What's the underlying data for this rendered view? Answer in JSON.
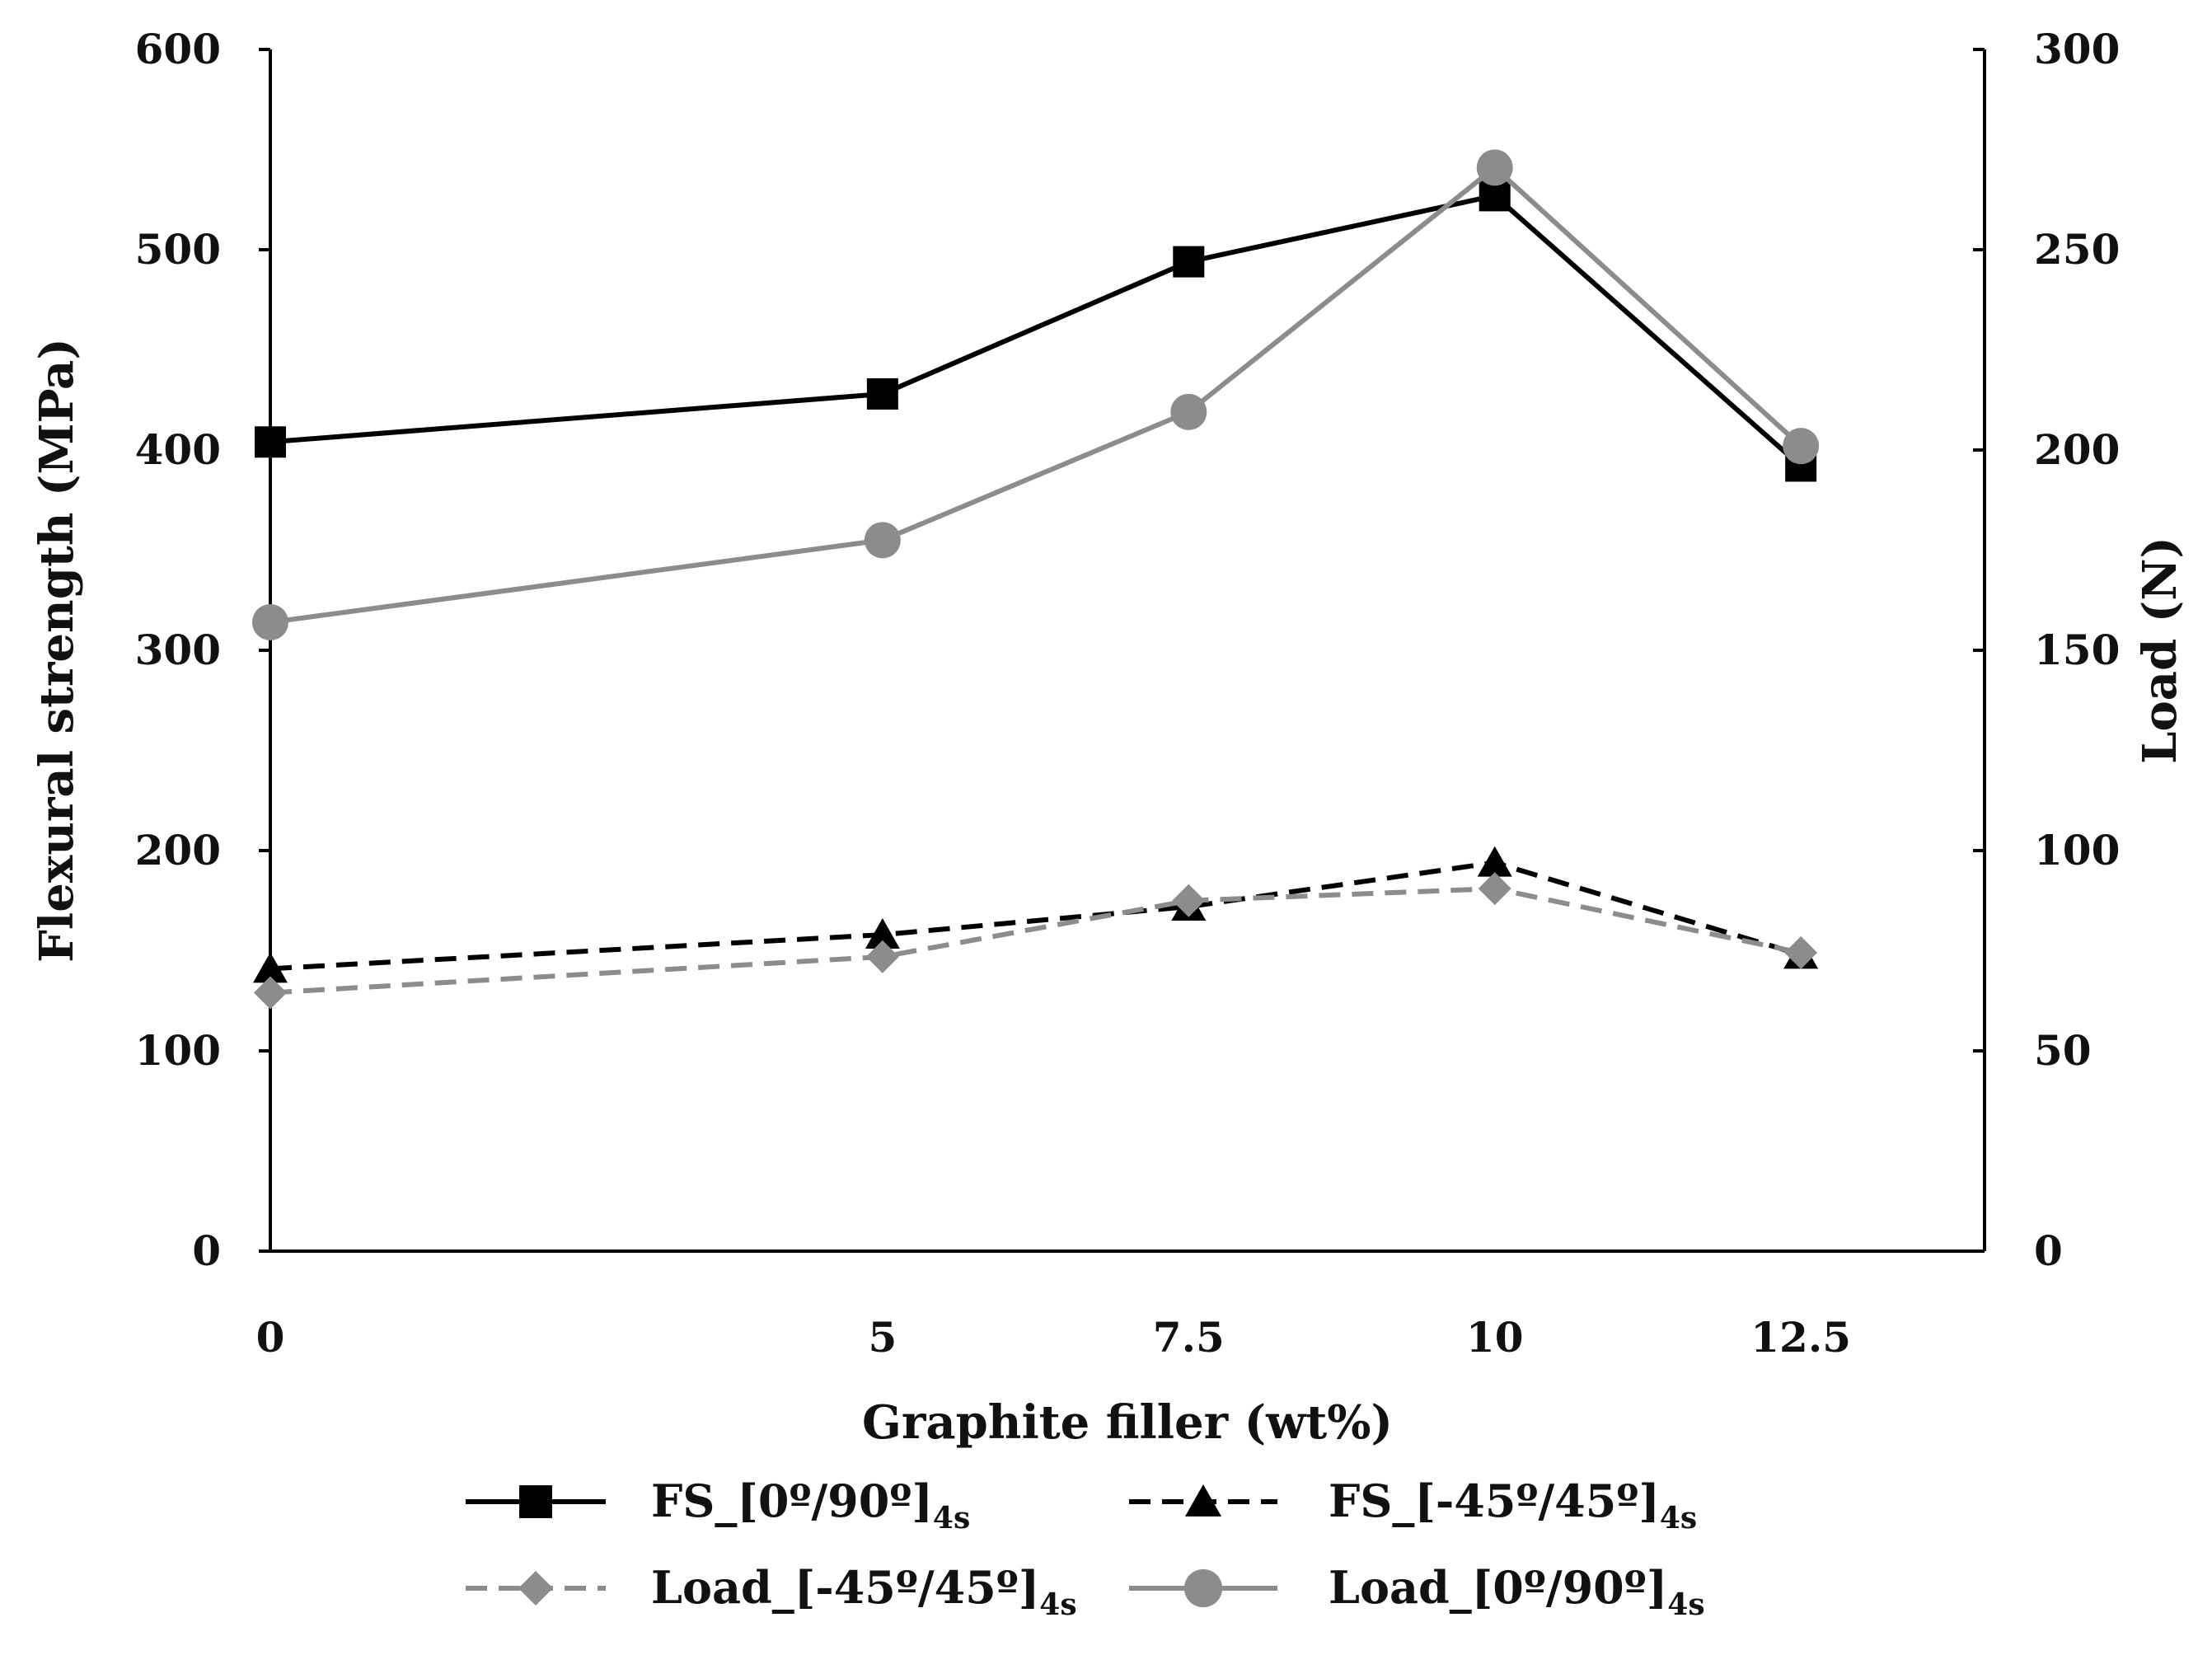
{
  "chart_data": {
    "type": "line",
    "title": "",
    "xlabel": "Graphite filler (wt%)",
    "ylabel_left": "Flexural strength (MPa)",
    "ylabel_right": "Load (N)",
    "x": [
      0,
      5,
      7.5,
      10,
      12.5
    ],
    "x_tick_labels": [
      "0",
      "5",
      "7.5",
      "10",
      "12.5"
    ],
    "xlim": [
      0,
      14
    ],
    "ylim_left": [
      0,
      600
    ],
    "ylim_right": [
      0,
      300
    ],
    "left_ticks": [
      0,
      100,
      200,
      300,
      400,
      500,
      600
    ],
    "right_ticks": [
      0,
      50,
      100,
      150,
      200,
      250,
      300
    ],
    "grid": false,
    "legend_position": "bottom",
    "series": [
      {
        "name": "FS_[0º/90º]4s",
        "legend_main": "FS_[0º/90º]",
        "legend_sub": "4s",
        "axis": "left",
        "values": [
          404,
          428,
          494,
          527,
          392
        ],
        "color": "#000000",
        "dash": "solid",
        "marker": "square"
      },
      {
        "name": "FS_[-45º/45º]4s",
        "legend_main": "FS_[-45º/45º]",
        "legend_sub": "4s",
        "axis": "left",
        "values": [
          141,
          158,
          172,
          194,
          148
        ],
        "color": "#000000",
        "dash": "dashed",
        "marker": "triangle"
      },
      {
        "name": "Load_[-45º/45º]4s",
        "legend_main": "Load_[-45º/45º]",
        "legend_sub": "4s",
        "axis": "right",
        "values": [
          64.5,
          73.5,
          87.5,
          90.5,
          74.5
        ],
        "color": "#8c8c8c",
        "dash": "dashed",
        "marker": "diamond"
      },
      {
        "name": "Load_[0º/90º]4s",
        "legend_main": "Load_[0º/90º]",
        "legend_sub": "4s",
        "axis": "right",
        "values": [
          157,
          177.5,
          209.5,
          270.5,
          201
        ],
        "color": "#8c8c8c",
        "dash": "solid",
        "marker": "circle"
      }
    ]
  }
}
